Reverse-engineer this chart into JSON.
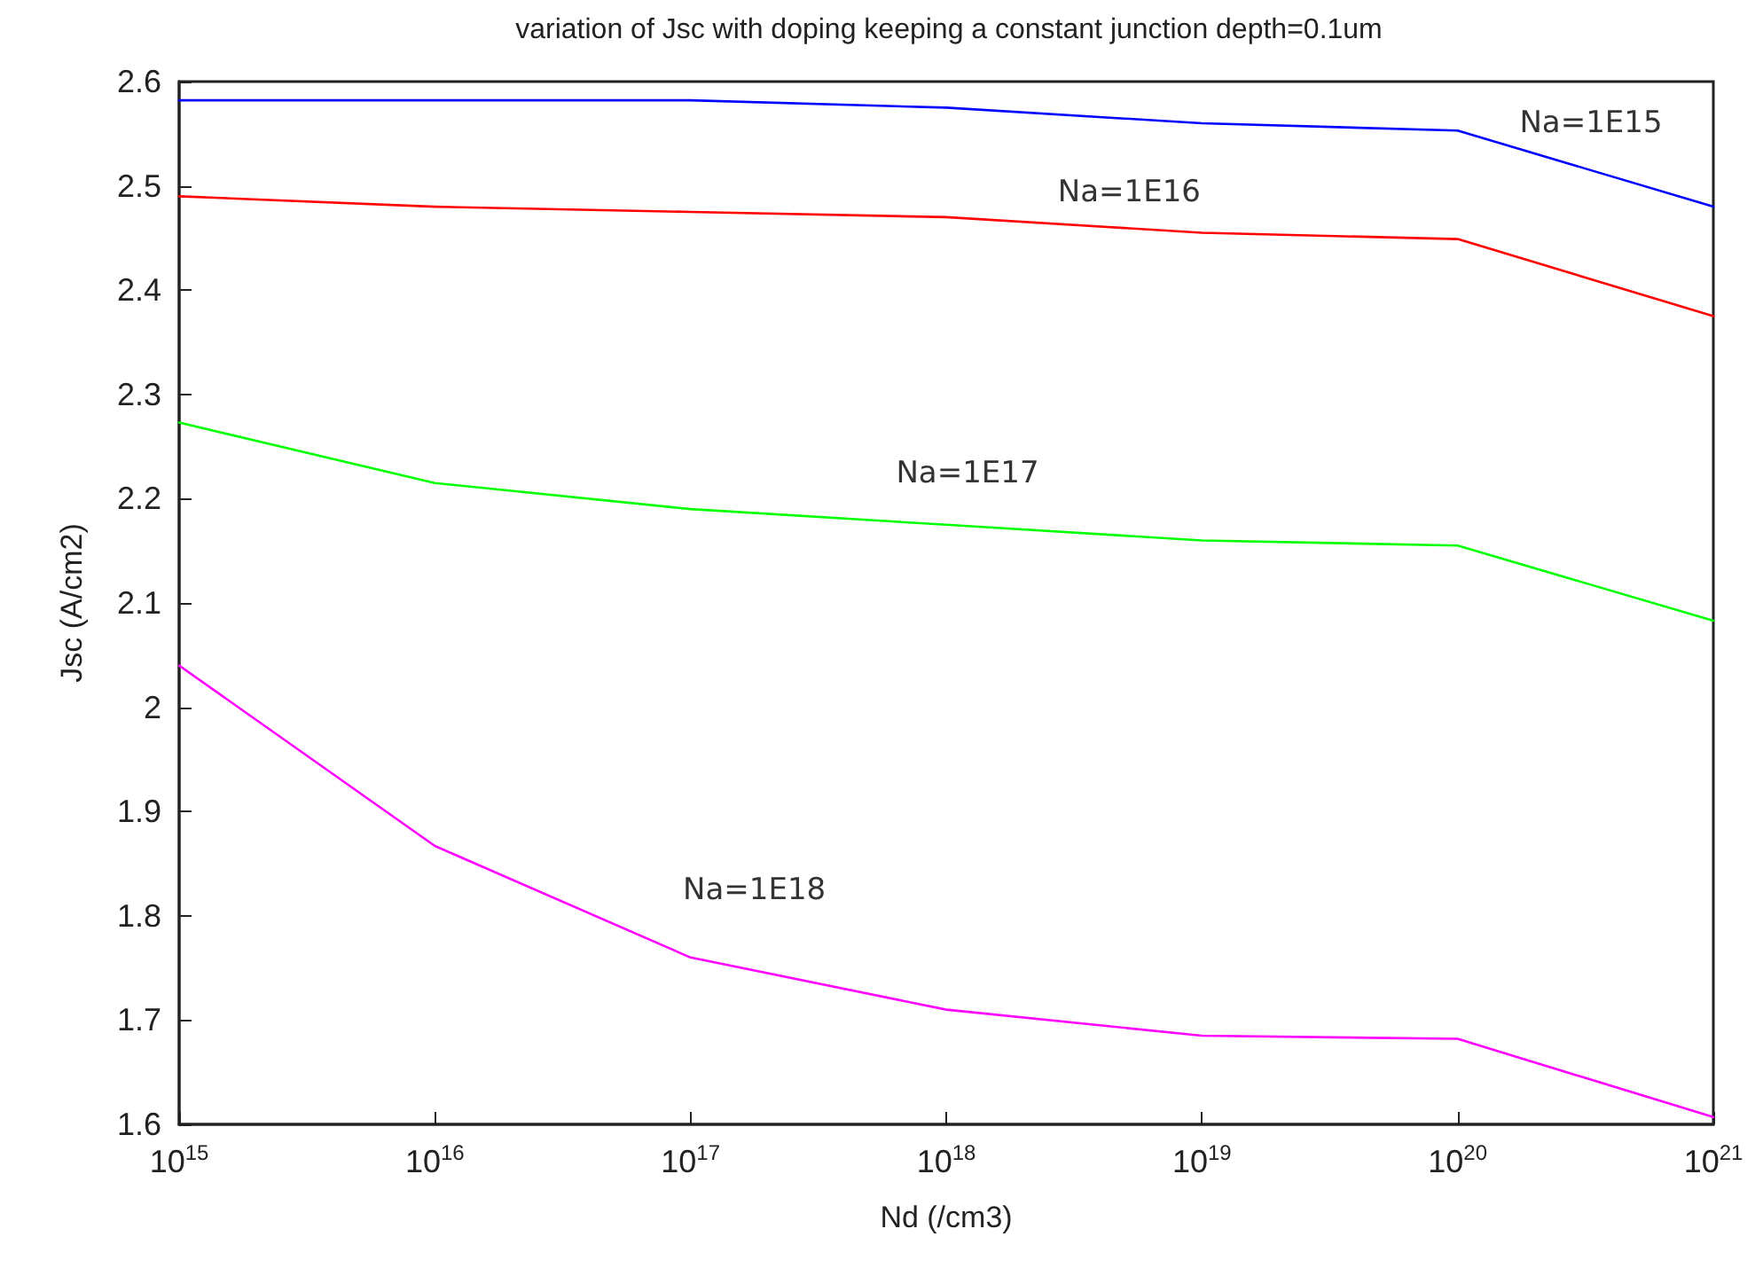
{
  "chart_data": {
    "type": "line",
    "title": "variation of Jsc with doping keeping a constant junction depth=0.1um",
    "xlabel": "Nd (/cm3)",
    "ylabel": "Jsc (A/cm2)",
    "x": [
      1000000000000000.0,
      1e+16,
      1e+17,
      1e+18,
      1e+19,
      1e+20,
      1e+21
    ],
    "series": [
      {
        "name": "Na=1E15",
        "color": "#0000ff",
        "values": [
          2.582,
          2.582,
          2.582,
          2.575,
          2.56,
          2.553,
          2.48
        ]
      },
      {
        "name": "Na=1E16",
        "color": "#ff0000",
        "values": [
          2.49,
          2.48,
          2.475,
          2.47,
          2.455,
          2.449,
          2.375
        ]
      },
      {
        "name": "Na=1E17",
        "color": "#00ff00",
        "values": [
          2.273,
          2.215,
          2.19,
          2.175,
          2.16,
          2.155,
          2.083
        ]
      },
      {
        "name": "Na=1E18",
        "color": "#ff00ff",
        "values": [
          2.04,
          1.867,
          1.76,
          1.71,
          1.685,
          1.682,
          1.607
        ]
      }
    ],
    "log": "x",
    "xlim": [
      1000000000000000.0,
      1e+21
    ],
    "xticks": [
      {
        "value": 1000000000000000.0,
        "label": "10$^{15}$"
      },
      {
        "value": 1e+16,
        "label": "10$^{16}$"
      },
      {
        "value": 1e+17,
        "label": "10$^{17}$"
      },
      {
        "value": 1e+18,
        "label": "10$^{18}$"
      },
      {
        "value": 1e+19,
        "label": "10$^{19}$"
      },
      {
        "value": 1e+20,
        "label": "10$^{20}$"
      },
      {
        "value": 1e+21,
        "label": "10$^{21}$"
      }
    ],
    "ylim": [
      1.6,
      2.6
    ],
    "yticks": [
      1.6,
      1.7,
      1.8,
      1.9,
      2,
      2.1,
      2.2,
      2.3,
      2.4,
      2.5,
      2.6
    ],
    "grid": false,
    "marker": "none",
    "line_style": "solid"
  }
}
